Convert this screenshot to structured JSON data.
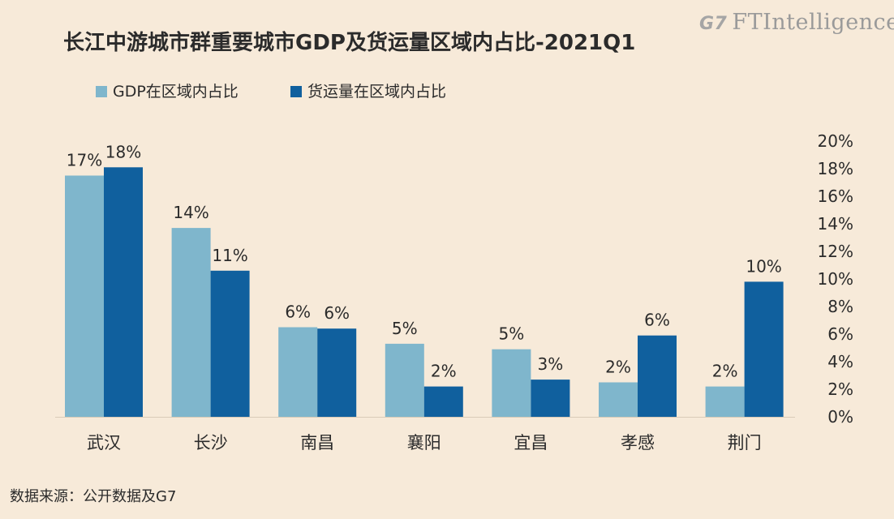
{
  "logo": {
    "mark": "G7",
    "text": "FTIntelligence"
  },
  "source": "数据来源：公开数据及G7",
  "colors": {
    "gdp": "#7fb6cc",
    "freight": "#10609e",
    "background": "#f7ead9"
  },
  "chart_data": {
    "type": "bar",
    "title": "长江中游城市群重要城市GDP及货运量区域内占比-2021Q1",
    "categories": [
      "武汉",
      "长沙",
      "南昌",
      "襄阳",
      "宜昌",
      "孝感",
      "荆门"
    ],
    "series": [
      {
        "name": "GDP在区域内占比",
        "values": [
          17.5,
          13.7,
          6.5,
          5.3,
          4.9,
          2.5,
          2.2
        ],
        "labels": [
          "17%",
          "14%",
          "6%",
          "5%",
          "5%",
          "2%",
          "2%"
        ]
      },
      {
        "name": "货运量在区域内占比",
        "values": [
          18.1,
          10.6,
          6.4,
          2.2,
          2.7,
          5.9,
          9.8
        ],
        "labels": [
          "18%",
          "11%",
          "6%",
          "2%",
          "3%",
          "6%",
          "10%"
        ]
      }
    ],
    "ylim": [
      0,
      20
    ],
    "yticks": [
      "0%",
      "2%",
      "4%",
      "6%",
      "8%",
      "10%",
      "12%",
      "14%",
      "16%",
      "18%",
      "20%"
    ],
    "y_axis_side": "right",
    "grid": false,
    "legend": "top-left"
  }
}
